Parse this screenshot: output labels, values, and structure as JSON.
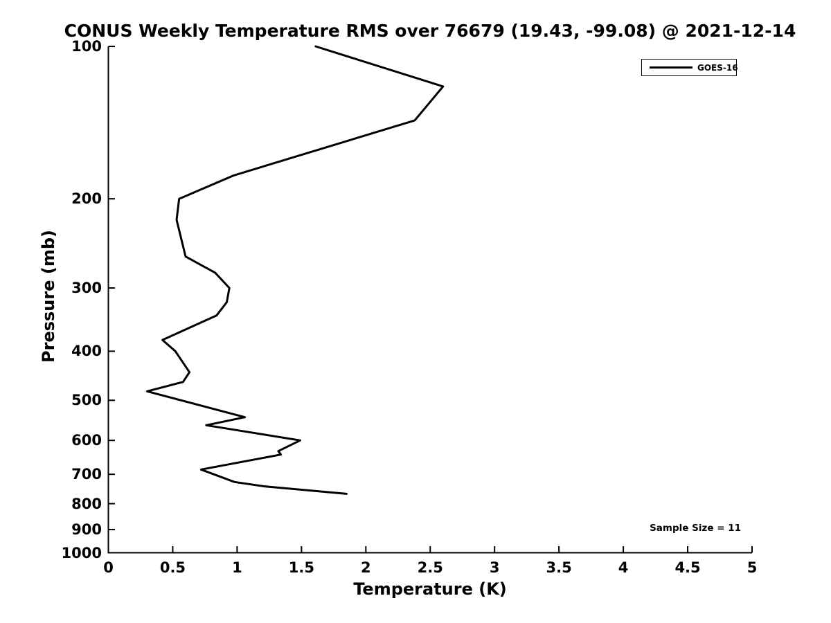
{
  "chart_data": {
    "type": "line",
    "title": "CONUS Weekly Temperature RMS over 76679 (19.43, -99.08) @ 2021-12-14",
    "xlabel": "Temperature (K)",
    "ylabel": "Pressure (mb)",
    "xlim": [
      0,
      5
    ],
    "ylim": [
      100,
      1000
    ],
    "y_scale": "log10",
    "y_axis_inverted": true,
    "grid": false,
    "legend_position": "top-right",
    "annotation": "Sample Size = 11",
    "axis_color": "#000000",
    "line_color": "#000000",
    "x_ticks": [
      {
        "value": 0,
        "label": "0"
      },
      {
        "value": 0.5,
        "label": "0.5"
      },
      {
        "value": 1,
        "label": "1"
      },
      {
        "value": 1.5,
        "label": "1.5"
      },
      {
        "value": 2,
        "label": "2"
      },
      {
        "value": 2.5,
        "label": "2.5"
      },
      {
        "value": 3,
        "label": "3"
      },
      {
        "value": 3.5,
        "label": "3.5"
      },
      {
        "value": 4,
        "label": "4"
      },
      {
        "value": 4.5,
        "label": "4.5"
      },
      {
        "value": 5,
        "label": "5"
      }
    ],
    "y_ticks": [
      {
        "value": 100,
        "label": "100"
      },
      {
        "value": 200,
        "label": "200"
      },
      {
        "value": 300,
        "label": "300"
      },
      {
        "value": 400,
        "label": "400"
      },
      {
        "value": 500,
        "label": "500"
      },
      {
        "value": 600,
        "label": "600"
      },
      {
        "value": 700,
        "label": "700"
      },
      {
        "value": 800,
        "label": "800"
      },
      {
        "value": 900,
        "label": "900"
      },
      {
        "value": 1000,
        "label": "1000"
      }
    ],
    "series": [
      {
        "name": "GOES-16",
        "color": "#000000",
        "points": [
          {
            "pressure_mb": 100,
            "rms_k": 1.61
          },
          {
            "pressure_mb": 120,
            "rms_k": 2.6
          },
          {
            "pressure_mb": 140,
            "rms_k": 2.38
          },
          {
            "pressure_mb": 180,
            "rms_k": 0.97
          },
          {
            "pressure_mb": 200,
            "rms_k": 0.55
          },
          {
            "pressure_mb": 220,
            "rms_k": 0.53
          },
          {
            "pressure_mb": 260,
            "rms_k": 0.6
          },
          {
            "pressure_mb": 280,
            "rms_k": 0.83
          },
          {
            "pressure_mb": 300,
            "rms_k": 0.94
          },
          {
            "pressure_mb": 320,
            "rms_k": 0.92
          },
          {
            "pressure_mb": 340,
            "rms_k": 0.84
          },
          {
            "pressure_mb": 380,
            "rms_k": 0.42
          },
          {
            "pressure_mb": 400,
            "rms_k": 0.52
          },
          {
            "pressure_mb": 440,
            "rms_k": 0.63
          },
          {
            "pressure_mb": 460,
            "rms_k": 0.58
          },
          {
            "pressure_mb": 480,
            "rms_k": 0.3
          },
          {
            "pressure_mb": 540,
            "rms_k": 1.06
          },
          {
            "pressure_mb": 560,
            "rms_k": 0.76
          },
          {
            "pressure_mb": 600,
            "rms_k": 1.49
          },
          {
            "pressure_mb": 630,
            "rms_k": 1.32
          },
          {
            "pressure_mb": 640,
            "rms_k": 1.34
          },
          {
            "pressure_mb": 685,
            "rms_k": 0.72
          },
          {
            "pressure_mb": 725,
            "rms_k": 0.98
          },
          {
            "pressure_mb": 740,
            "rms_k": 1.22
          },
          {
            "pressure_mb": 765,
            "rms_k": 1.85
          }
        ]
      }
    ]
  }
}
